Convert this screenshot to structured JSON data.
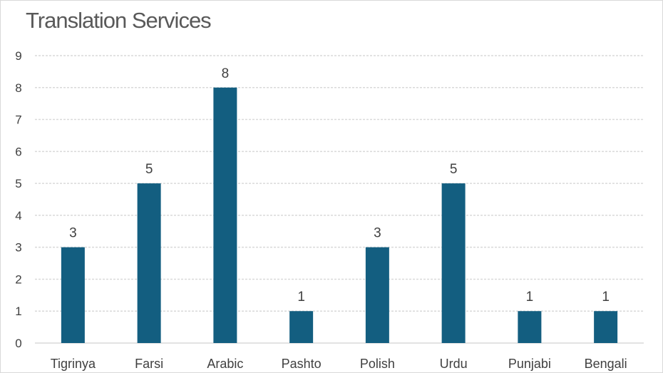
{
  "chart_data": {
    "type": "bar",
    "title": "Translation Services",
    "categories": [
      "Tigrinya",
      "Farsi",
      "Arabic",
      "Pashto",
      "Polish",
      "Urdu",
      "Punjabi",
      "Bengali"
    ],
    "values": [
      3,
      5,
      8,
      1,
      3,
      5,
      1,
      1
    ],
    "xlabel": "",
    "ylabel": "",
    "ylim": [
      0,
      9
    ],
    "yticks": [
      0,
      1,
      2,
      3,
      4,
      5,
      6,
      7,
      8,
      9
    ],
    "grid": true,
    "legend": "none",
    "data_labels": true,
    "colors": {
      "bar": "#135e80",
      "grid": "#d9d9d9",
      "text": "#404040",
      "title": "#595959"
    }
  }
}
